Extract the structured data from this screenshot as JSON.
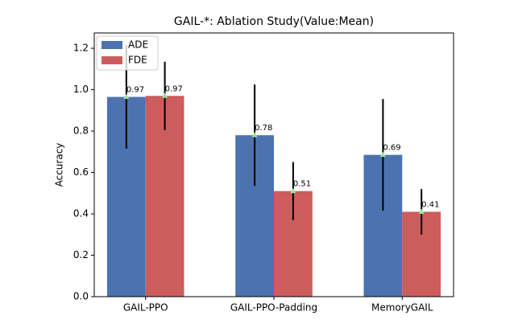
{
  "chart_data": {
    "type": "bar",
    "title": "GAIL-*: Ablation Study(Value:Mean)",
    "y_label": "Accuracy",
    "categories": [
      "GAIL-PPO",
      "GAIL-PPO-Padding",
      "MemoryGAIL"
    ],
    "series": [
      {
        "name": "ADE",
        "color": "#4c72b0",
        "values": [
          0.965,
          0.78,
          0.685
        ],
        "value_labels": [
          "0.97",
          "0.78",
          "0.69"
        ],
        "errors": [
          0.25,
          0.245,
          0.27
        ]
      },
      {
        "name": "FDE",
        "color": "#cd5c5c",
        "values": [
          0.97,
          0.51,
          0.41
        ],
        "value_labels": [
          "0.97",
          "0.51",
          "0.41"
        ],
        "errors": [
          0.165,
          0.14,
          0.11
        ]
      }
    ],
    "ylim": [
      0,
      1.274
    ],
    "yticks": [
      {
        "value": 0,
        "label": "0.0"
      },
      0.2,
      0.4,
      0.6,
      0.8,
      {
        "value": 1,
        "label": "1.0"
      },
      1.2
    ],
    "legend": "upper-left"
  }
}
